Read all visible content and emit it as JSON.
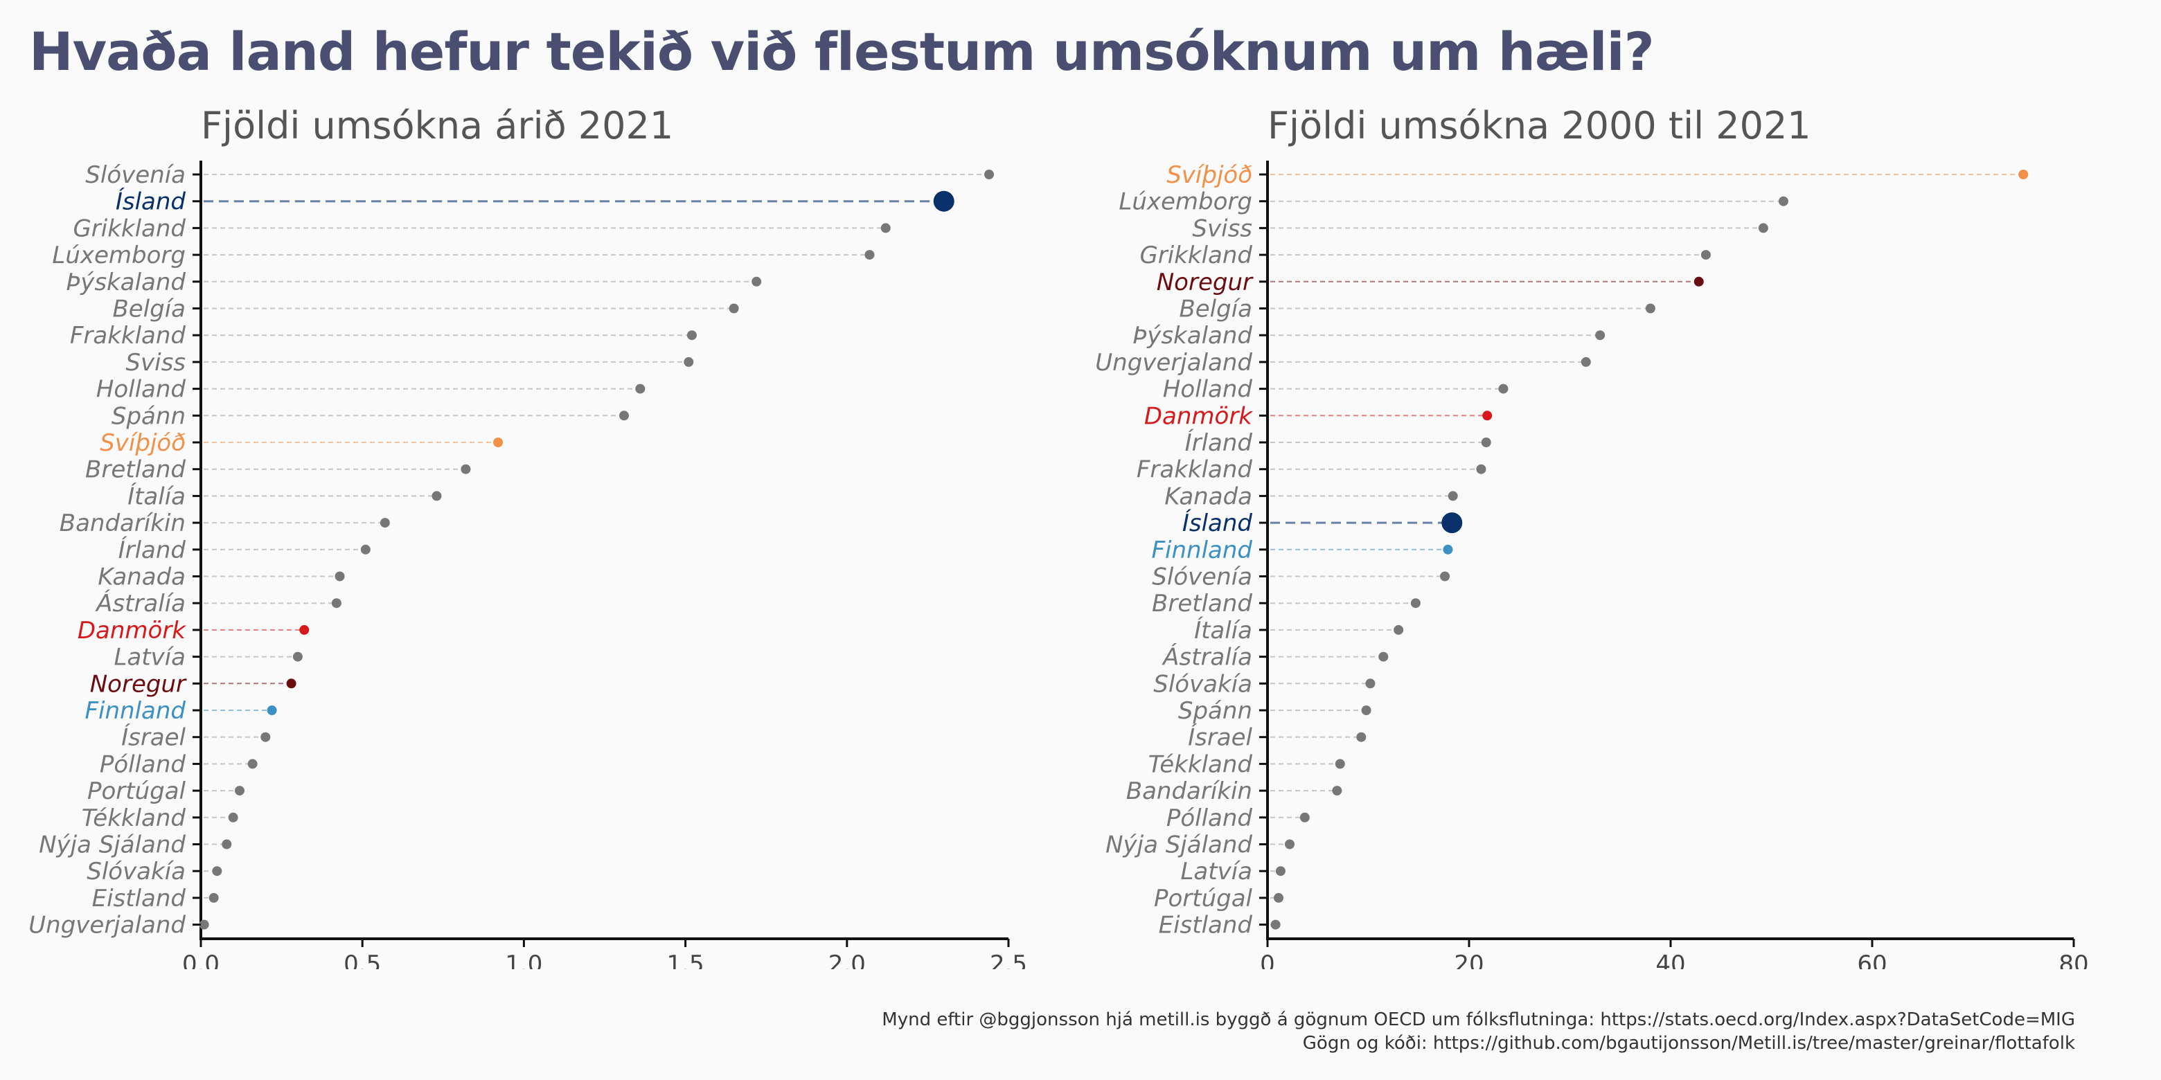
{
  "title": "Hvaða land hefur tekið við flestum umsóknum um hæli?",
  "caption_line1": "Mynd eftir @bggjonsson hjá metill.is byggð á gögnum OECD um fólksflutninga: https://stats.oecd.org/Index.aspx?DataSetCode=MIG",
  "caption_line2": "Gögn og kóði: https://github.com/bgautijonsson/Metill.is/tree/master/greinar/flottafolk",
  "colors": {
    "default": "#777777",
    "default_line": "#c0c0c0",
    "Ísland": "#08306b",
    "Svíþjóð": "#f1914a",
    "Danmörk": "#d7191c",
    "Noregur": "#6b0d10",
    "Finnland": "#3b90c4"
  },
  "chart_data": [
    {
      "type": "lollipop",
      "title": "Fjöldi umsókna árið 2021",
      "xlim": [
        0,
        2.5
      ],
      "xticks": [
        "0.0",
        "0.5",
        "1.0",
        "1.5",
        "2.0",
        "2.5"
      ],
      "xtick_values": [
        0,
        0.5,
        1.0,
        1.5,
        2.0,
        2.5
      ],
      "categories": [
        "Slóvenía",
        "Ísland",
        "Grikkland",
        "Lúxemborg",
        "Þýskaland",
        "Belgía",
        "Frakkland",
        "Sviss",
        "Holland",
        "Spánn",
        "Svíþjóð",
        "Bretland",
        "Ítalía",
        "Bandaríkin",
        "Írland",
        "Kanada",
        "Ástralía",
        "Danmörk",
        "Latvía",
        "Noregur",
        "Finnland",
        "Ísrael",
        "Pólland",
        "Portúgal",
        "Tékkland",
        "Nýja Sjáland",
        "Slóvakía",
        "Eistland",
        "Ungverjaland"
      ],
      "values": [
        2.44,
        2.3,
        2.12,
        2.07,
        1.72,
        1.65,
        1.52,
        1.51,
        1.36,
        1.31,
        0.92,
        0.82,
        0.73,
        0.57,
        0.51,
        0.43,
        0.42,
        0.32,
        0.3,
        0.28,
        0.22,
        0.2,
        0.16,
        0.12,
        0.1,
        0.08,
        0.05,
        0.04,
        0.01
      ]
    },
    {
      "type": "lollipop",
      "title": "Fjöldi umsókna 2000 til 2021",
      "xlim": [
        0,
        80
      ],
      "xticks": [
        "0",
        "20",
        "40",
        "60",
        "80"
      ],
      "xtick_values": [
        0,
        20,
        40,
        60,
        80
      ],
      "categories": [
        "Svíþjóð",
        "Lúxemborg",
        "Sviss",
        "Grikkland",
        "Noregur",
        "Belgía",
        "Þýskaland",
        "Ungverjaland",
        "Holland",
        "Danmörk",
        "Írland",
        "Frakkland",
        "Kanada",
        "Ísland",
        "Finnland",
        "Slóvenía",
        "Bretland",
        "Ítalía",
        "Ástralía",
        "Slóvakía",
        "Spánn",
        "Ísrael",
        "Tékkland",
        "Bandaríkin",
        "Pólland",
        "Nýja Sjáland",
        "Latvía",
        "Portúgal",
        "Eistland"
      ],
      "values": [
        75.0,
        51.2,
        49.2,
        43.5,
        42.8,
        38.0,
        33.0,
        31.6,
        23.4,
        21.8,
        21.7,
        21.2,
        18.4,
        18.3,
        17.9,
        17.6,
        14.7,
        13.0,
        11.5,
        10.2,
        9.8,
        9.3,
        7.2,
        6.9,
        3.7,
        2.2,
        1.3,
        1.1,
        0.8
      ]
    }
  ]
}
